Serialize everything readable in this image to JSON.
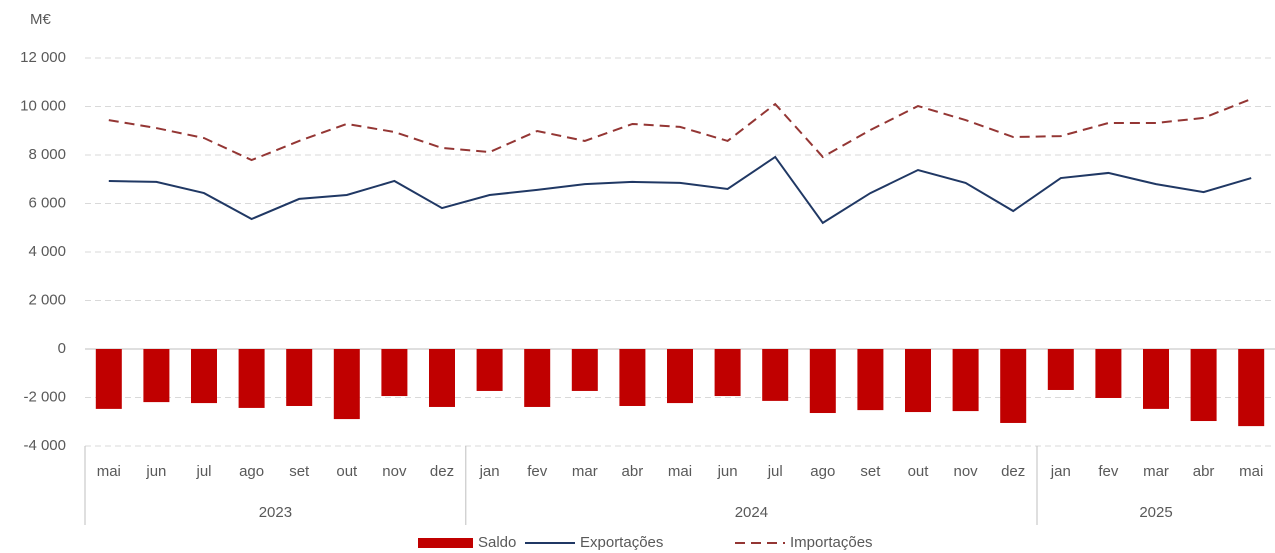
{
  "chart_data": {
    "type": "bar_line",
    "unit_label": "M€",
    "categories": [
      "mai",
      "jun",
      "jul",
      "ago",
      "set",
      "out",
      "nov",
      "dez",
      "jan",
      "fev",
      "mar",
      "abr",
      "mai",
      "jun",
      "jul",
      "ago",
      "set",
      "out",
      "nov",
      "dez",
      "jan",
      "fev",
      "mar",
      "abr",
      "mai"
    ],
    "year_groups": [
      {
        "label": "2023",
        "count": 8
      },
      {
        "label": "2024",
        "count": 12
      },
      {
        "label": "2025",
        "count": 5
      }
    ],
    "series": [
      {
        "name": "Saldo",
        "kind": "bar",
        "color": "#c00000",
        "values": [
          -2470,
          -2190,
          -2230,
          -2430,
          -2350,
          -2890,
          -1940,
          -2390,
          -1730,
          -2390,
          -1730,
          -2350,
          -2230,
          -1940,
          -2140,
          -2640,
          -2520,
          -2600,
          -2560,
          -3050,
          -1690,
          -2020,
          -2470,
          -2970,
          -3180
        ]
      },
      {
        "name": "Exportações",
        "kind": "line",
        "color": "#203864",
        "dash": false,
        "values": [
          6930,
          6890,
          6430,
          5360,
          6190,
          6350,
          6930,
          5810,
          6350,
          6560,
          6800,
          6890,
          6850,
          6600,
          7920,
          5200,
          6430,
          7380,
          6850,
          5690,
          7050,
          7260,
          6800,
          6470,
          7050
        ]
      },
      {
        "name": "Importações",
        "kind": "line",
        "color": "#943634",
        "dash": true,
        "values": [
          9440,
          9110,
          8700,
          7790,
          8580,
          9280,
          8950,
          8290,
          8120,
          8990,
          8580,
          9280,
          9160,
          8580,
          10100,
          7920,
          9030,
          10020,
          9440,
          8740,
          8780,
          9320,
          9320,
          9530,
          10310
        ]
      }
    ],
    "ylim": [
      -4000,
      12000
    ],
    "yticks": [
      {
        "value": -4000,
        "label": "-4 000"
      },
      {
        "value": -2000,
        "label": "-2 000"
      },
      0,
      {
        "value": 2000,
        "label": "2 000"
      },
      {
        "value": 4000,
        "label": "4 000"
      },
      {
        "value": 6000,
        "label": "6 000"
      },
      {
        "value": 8000,
        "label": "8 000"
      },
      {
        "value": 10000,
        "label": "10 000"
      },
      {
        "value": 12000,
        "label": "12 000"
      }
    ],
    "grid": true
  }
}
